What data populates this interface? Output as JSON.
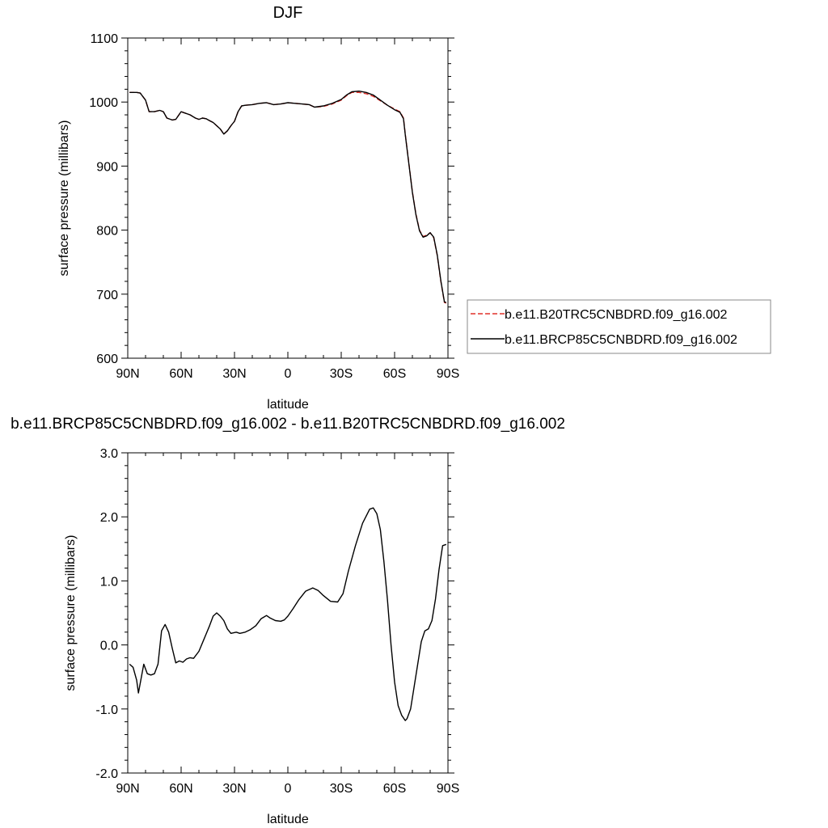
{
  "chart_data": [
    {
      "type": "line",
      "title": "DJF",
      "xlabel": "latitude",
      "ylabel": "surface pressure (millibars)",
      "xlim": [
        90,
        -90
      ],
      "ylim": [
        600,
        1100
      ],
      "x_tick_values": [
        90,
        60,
        30,
        0,
        -30,
        -60,
        -90
      ],
      "x_tick_labels": [
        "90N",
        "60N",
        "30N",
        "0",
        "30S",
        "60S",
        "90S"
      ],
      "y_ticks": [
        600,
        700,
        800,
        900,
        1000,
        1100
      ],
      "y_tick_labels": [
        "600",
        "700",
        "800",
        "900",
        "1000",
        "1100"
      ],
      "legend_position": "right",
      "x": [
        89,
        85,
        83,
        80,
        78,
        75,
        72,
        70,
        68,
        65,
        63,
        60,
        58,
        55,
        52,
        50,
        48,
        46,
        44,
        42,
        40,
        38,
        36,
        34,
        32,
        30,
        28,
        26,
        24,
        20,
        16,
        12,
        8,
        4,
        0,
        -4,
        -8,
        -12,
        -15,
        -20,
        -25,
        -30,
        -33,
        -36,
        -40,
        -44,
        -48,
        -52,
        -56,
        -60,
        -63,
        -65,
        -66,
        -68,
        -70,
        -72,
        -74,
        -76,
        -78,
        -80,
        -82,
        -84,
        -86,
        -88,
        -89
      ],
      "series": [
        {
          "name": "b.e11.B20TRC5CNBDRD.f09_g16.002",
          "color": "#e0302a",
          "dash": "dashed",
          "values": [
            1015,
            1015,
            1014,
            1003,
            985,
            985,
            987,
            985,
            975,
            972,
            973,
            985,
            983,
            980,
            975,
            973,
            975,
            974,
            971,
            968,
            963,
            958,
            950,
            955,
            963,
            970,
            985,
            994,
            995,
            996,
            998,
            999,
            996,
            997,
            999,
            998,
            997,
            996,
            992,
            993,
            997,
            1003,
            1010,
            1015,
            1015,
            1013,
            1009,
            1002,
            995,
            989,
            985,
            975,
            950,
            905,
            860,
            825,
            800,
            790,
            792,
            796,
            788,
            760,
            720,
            687,
            686
          ]
        },
        {
          "name": "b.e11.BRCP85C5CNBDRD.f09_g16.002",
          "color": "#000000",
          "dash": "solid",
          "values": [
            1015,
            1015,
            1014,
            1003,
            985,
            985,
            987,
            985,
            975,
            972,
            973,
            985,
            983,
            980,
            975,
            973,
            975,
            974,
            971,
            968,
            963,
            958,
            950,
            955,
            963,
            970,
            985,
            994,
            995,
            996,
            998,
            999,
            996,
            997,
            999,
            998,
            997,
            996,
            992,
            994,
            998,
            1004,
            1011,
            1016,
            1017,
            1015,
            1011,
            1003,
            995,
            988,
            984,
            974,
            949,
            904,
            859,
            824,
            799,
            789,
            791,
            796,
            789,
            761,
            721,
            688,
            687
          ]
        }
      ]
    },
    {
      "type": "line",
      "title": "b.e11.BRCP85C5CNBDRD.f09_g16.002 - b.e11.B20TRC5CNBDRD.f09_g16.002",
      "xlabel": "latitude",
      "ylabel": "surface pressure (millibars)",
      "xlim": [
        90,
        -90
      ],
      "ylim": [
        -2.0,
        3.0
      ],
      "x_tick_values": [
        90,
        60,
        30,
        0,
        -30,
        -60,
        -90
      ],
      "x_tick_labels": [
        "90N",
        "60N",
        "30N",
        "0",
        "30S",
        "60S",
        "90S"
      ],
      "y_ticks": [
        -2.0,
        -1.0,
        0.0,
        1.0,
        2.0,
        3.0
      ],
      "y_tick_labels": [
        "-2.0",
        "-1.0",
        "0.0",
        "1.0",
        "2.0",
        "3.0"
      ],
      "x": [
        89,
        87,
        85,
        84,
        83,
        81,
        79,
        77,
        75,
        73,
        71,
        69,
        67,
        65,
        63,
        61,
        59,
        57,
        55,
        53,
        50,
        47,
        44,
        42,
        40,
        38,
        36,
        34,
        32,
        29,
        27,
        24,
        21,
        18,
        15,
        12,
        10,
        7,
        4,
        2,
        0,
        -3,
        -6,
        -10,
        -14,
        -17,
        -20,
        -24,
        -28,
        -31,
        -34,
        -38,
        -42,
        -46,
        -48,
        -50,
        -52,
        -54,
        -56,
        -58,
        -60,
        -62,
        -64,
        -66,
        -67,
        -69,
        -71,
        -73,
        -75,
        -77,
        -79,
        -81,
        -83,
        -85,
        -87,
        -89
      ],
      "series": [
        {
          "name": "",
          "color": "#000000",
          "dash": "solid",
          "values": [
            -0.3,
            -0.35,
            -0.55,
            -0.75,
            -0.6,
            -0.3,
            -0.45,
            -0.47,
            -0.45,
            -0.3,
            0.22,
            0.32,
            0.2,
            -0.05,
            -0.28,
            -0.25,
            -0.27,
            -0.22,
            -0.2,
            -0.21,
            -0.1,
            0.1,
            0.3,
            0.45,
            0.5,
            0.45,
            0.38,
            0.25,
            0.18,
            0.2,
            0.18,
            0.2,
            0.24,
            0.3,
            0.41,
            0.46,
            0.42,
            0.38,
            0.37,
            0.39,
            0.45,
            0.57,
            0.7,
            0.84,
            0.89,
            0.85,
            0.77,
            0.68,
            0.67,
            0.8,
            1.15,
            1.55,
            1.9,
            2.12,
            2.14,
            2.05,
            1.8,
            1.3,
            0.7,
            0.0,
            -0.58,
            -0.95,
            -1.1,
            -1.18,
            -1.15,
            -1.0,
            -0.65,
            -0.3,
            0.05,
            0.22,
            0.25,
            0.38,
            0.72,
            1.18,
            1.55,
            1.57
          ]
        }
      ]
    }
  ]
}
